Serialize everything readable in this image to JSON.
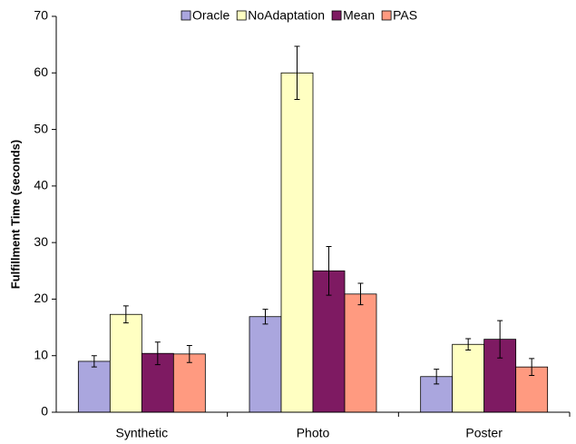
{
  "chart_data": {
    "type": "bar",
    "y_label": "Fulfillment Time (seconds)",
    "categories": [
      "Synthetic",
      "Photo",
      "Poster"
    ],
    "series": [
      {
        "name": "Oracle",
        "color": "#aaa6de",
        "values": [
          9.0,
          16.9,
          6.3
        ],
        "errors": [
          1.0,
          1.3,
          1.3
        ]
      },
      {
        "name": "NoAdaptation",
        "color": "#ffffc2",
        "values": [
          17.3,
          60,
          12.0
        ],
        "errors": [
          1.5,
          4.7,
          1.0
        ]
      },
      {
        "name": "Mean",
        "color": "#7e1a62",
        "values": [
          10.4,
          25,
          12.9
        ],
        "errors": [
          2.0,
          4.3,
          3.3
        ]
      },
      {
        "name": "PAS",
        "color": "#ff9a80",
        "values": [
          10.3,
          20.9,
          8.0
        ],
        "errors": [
          1.5,
          1.9,
          1.5
        ]
      }
    ],
    "ylim": [
      0,
      70
    ],
    "yticks": [
      0,
      10,
      20,
      30,
      40,
      50,
      60,
      70
    ],
    "legend": "top"
  }
}
